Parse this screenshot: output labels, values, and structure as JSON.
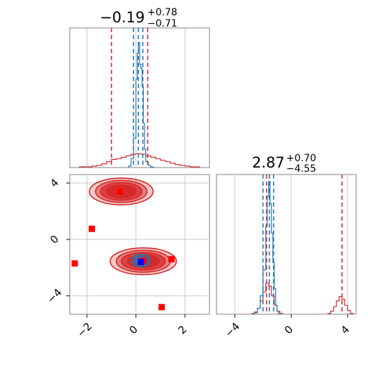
{
  "colors": {
    "red": "#d62728",
    "blue": "#1f77b4",
    "square_red": "#ff0000",
    "square_blue": "#0000ff",
    "grid": "#c8c8c8",
    "frame": "#808080"
  },
  "chart_data": [
    {
      "panel": "top-left",
      "type": "histogram",
      "title": {
        "median": "−0.19",
        "plus": "+0.78",
        "minus": "−0.71"
      },
      "xlim": [
        -2.7,
        3.0
      ],
      "xticks": [
        -2,
        0,
        2
      ],
      "series": [
        {
          "name": "",
          "color": "red",
          "style": "step",
          "x": [
            -2.3,
            -2.0,
            -1.8,
            -1.6,
            -1.4,
            -1.2,
            -1.0,
            -0.8,
            -0.6,
            -0.4,
            -0.2,
            0.0,
            0.2,
            0.4,
            0.6,
            0.8,
            1.0,
            1.2,
            1.4,
            1.6,
            1.8,
            2.0,
            2.2,
            2.4
          ],
          "y": [
            1,
            1,
            2,
            3,
            5,
            8,
            11,
            12,
            14,
            16,
            18,
            19,
            18,
            16,
            14,
            12,
            10,
            8,
            6,
            4,
            3,
            2,
            1,
            1
          ]
        },
        {
          "name": "",
          "color": "blue",
          "style": "step",
          "x": [
            -0.3,
            -0.2,
            -0.1,
            0.0,
            0.05,
            0.1,
            0.15,
            0.2,
            0.25,
            0.3,
            0.35,
            0.4,
            0.5,
            0.6
          ],
          "y": [
            2,
            12,
            40,
            120,
            155,
            170,
            140,
            135,
            110,
            60,
            25,
            8,
            3,
            1
          ]
        }
      ],
      "vlines": [
        {
          "color": "red",
          "x": -1.0
        },
        {
          "color": "red",
          "x": 0.48
        },
        {
          "color": "blue",
          "x": -0.1
        },
        {
          "color": "blue",
          "x": 0.1
        },
        {
          "color": "blue",
          "x": 0.28
        }
      ]
    },
    {
      "panel": "bottom-left",
      "type": "contour",
      "xlim": [
        -2.7,
        3.0
      ],
      "ylim": [
        -5.3,
        4.6
      ],
      "xticks": [
        -2,
        0,
        2
      ],
      "yticks": [
        -4,
        0,
        4
      ],
      "xtick_labels": [
        "−2",
        "0",
        "2"
      ],
      "ytick_labels": [
        "−4",
        "0",
        "4"
      ],
      "contours": [
        {
          "color": "red",
          "cx": -0.6,
          "cy": 3.4,
          "levels": [
            [
              1.3,
              0.95
            ],
            [
              1.05,
              0.78
            ],
            [
              0.85,
              0.62
            ],
            [
              0.6,
              0.45
            ]
          ]
        },
        {
          "color": "red",
          "cx": 0.3,
          "cy": -1.55,
          "levels": [
            [
              1.35,
              0.95
            ],
            [
              1.1,
              0.78
            ],
            [
              0.9,
              0.62
            ],
            [
              0.65,
              0.45
            ]
          ]
        },
        {
          "color": "blue",
          "cx": 0.2,
          "cy": -1.5,
          "levels": [
            [
              0.38,
              0.45
            ],
            [
              0.22,
              0.28
            ]
          ]
        }
      ],
      "points": [
        {
          "color": "square_red",
          "x": -0.65,
          "y": 3.4
        },
        {
          "color": "square_red",
          "x": -1.8,
          "y": 0.75
        },
        {
          "color": "square_red",
          "x": -2.5,
          "y": -1.7
        },
        {
          "color": "square_red",
          "x": 0.3,
          "y": -1.5
        },
        {
          "color": "square_red",
          "x": 1.45,
          "y": -1.4
        },
        {
          "color": "square_red",
          "x": 1.05,
          "y": -4.8
        },
        {
          "color": "square_blue",
          "x": 0.2,
          "y": -1.6
        }
      ]
    },
    {
      "panel": "bottom-right",
      "type": "histogram",
      "title": {
        "median": "2.87",
        "plus": "+0.70",
        "minus": "−4.55"
      },
      "xlim": [
        -5.3,
        4.6
      ],
      "xticks": [
        -4,
        0,
        4
      ],
      "xtick_labels": [
        "−4",
        "0",
        "4"
      ],
      "series": [
        {
          "name": "",
          "color": "red",
          "style": "step",
          "x": [
            -2.8,
            -2.6,
            -2.4,
            -2.2,
            -2.0,
            -1.8,
            -1.6,
            -1.4,
            -1.2,
            -1.0,
            -0.8,
            2.6,
            2.8,
            3.0,
            3.2,
            3.4,
            3.6,
            3.8,
            4.0,
            4.2
          ],
          "y": [
            1,
            3,
            8,
            18,
            30,
            42,
            38,
            25,
            12,
            4,
            1,
            1,
            4,
            10,
            18,
            24,
            20,
            12,
            5,
            1
          ]
        },
        {
          "name": "",
          "color": "blue",
          "style": "step",
          "x": [
            -2.6,
            -2.4,
            -2.2,
            -2.0,
            -1.8,
            -1.7,
            -1.6,
            -1.5,
            -1.4,
            -1.3,
            -1.2,
            -1.1,
            -1.0,
            -0.9
          ],
          "y": [
            2,
            8,
            25,
            60,
            120,
            160,
            180,
            150,
            110,
            70,
            35,
            12,
            4,
            1
          ]
        }
      ],
      "vlines": [
        {
          "color": "red",
          "x": -1.75
        },
        {
          "color": "red",
          "x": 3.6
        },
        {
          "color": "blue",
          "x": -2.0
        },
        {
          "color": "blue",
          "x": -1.55
        },
        {
          "color": "blue",
          "x": -1.25
        }
      ]
    }
  ]
}
